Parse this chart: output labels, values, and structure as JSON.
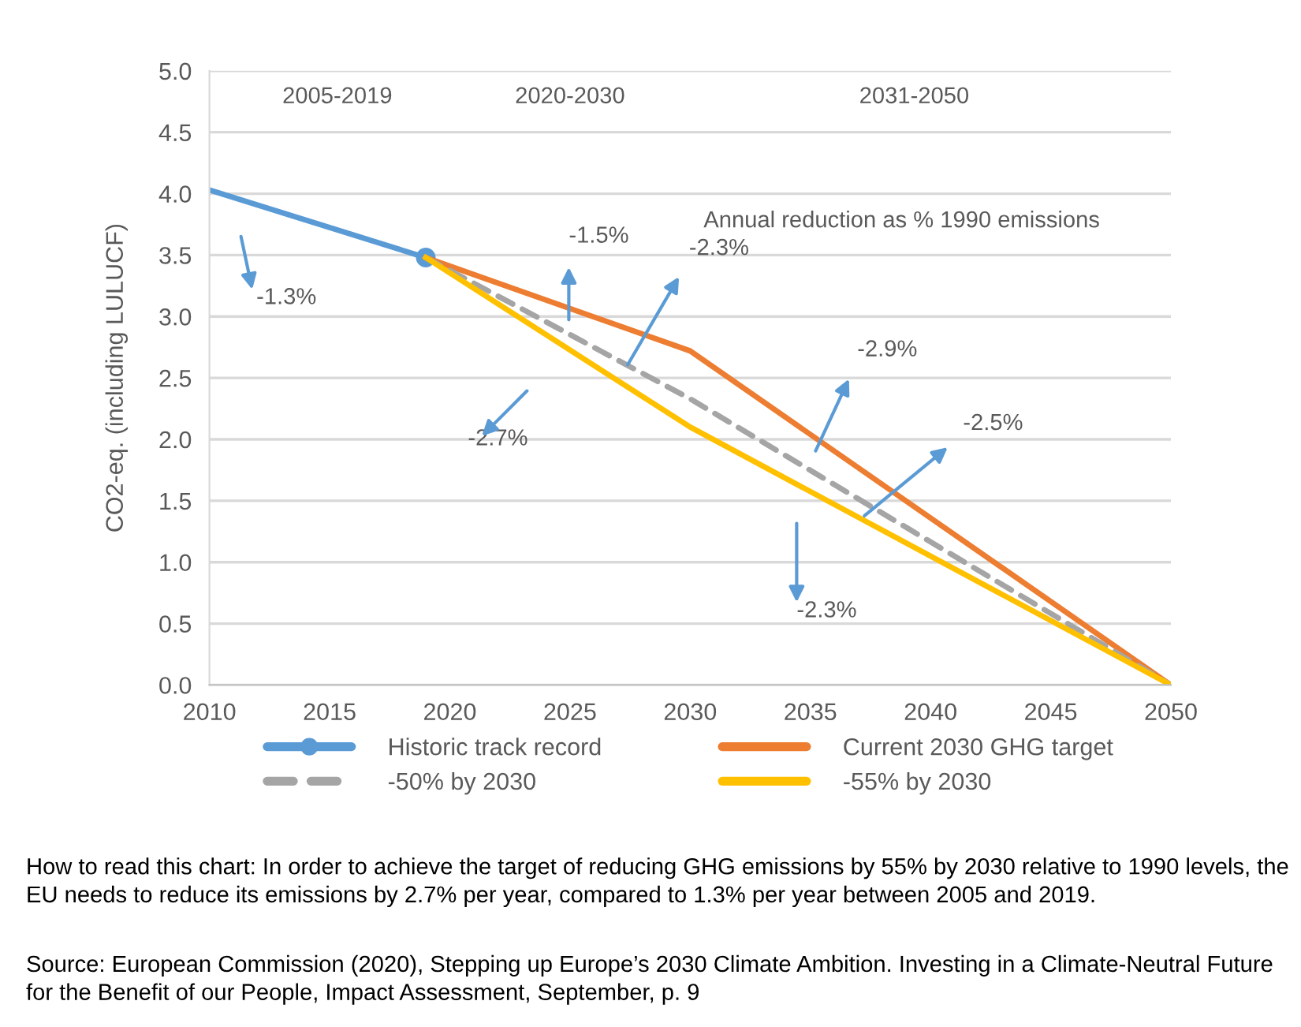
{
  "chart_data": {
    "type": "line",
    "ylabel": "CO2-eq. (including LULUCF)",
    "series": [
      {
        "name": "Historic track record",
        "color": "#5b9bd5",
        "x": [
          2010,
          2019
        ],
        "values": [
          4.03,
          3.48
        ],
        "marker": "circle",
        "line_style": "solid"
      },
      {
        "name": "Current 2030 GHG target",
        "color": "#ed7d31",
        "x": [
          2019,
          2030,
          2050
        ],
        "values": [
          3.48,
          2.72,
          0.0
        ],
        "marker": "none",
        "line_style": "solid"
      },
      {
        "name": "-50% by 2030",
        "color": "#a5a5a5",
        "x": [
          2019,
          2030,
          2050
        ],
        "values": [
          3.48,
          2.33,
          0.0
        ],
        "marker": "none",
        "line_style": "dashed"
      },
      {
        "name": "-55% by 2030",
        "color": "#ffc000",
        "x": [
          2019,
          2030,
          2050
        ],
        "values": [
          3.48,
          2.1,
          0.0
        ],
        "marker": "none",
        "line_style": "solid"
      }
    ],
    "xlim": [
      2010,
      2050
    ],
    "xticks": [
      2010,
      2015,
      2020,
      2025,
      2030,
      2035,
      2040,
      2045,
      2050
    ],
    "ylim": [
      0,
      5
    ],
    "yticks": [
      {
        "value": 0,
        "label": "0.0"
      },
      {
        "value": 0.5,
        "label": "0.5"
      },
      {
        "value": 1,
        "label": "1.0"
      },
      {
        "value": 1.5,
        "label": "1.5"
      },
      {
        "value": 2,
        "label": "2.0"
      },
      {
        "value": 2.5,
        "label": "2.5"
      },
      {
        "value": 3,
        "label": "3.0"
      },
      {
        "value": 3.5,
        "label": "3.5"
      },
      {
        "value": 4,
        "label": "4.0"
      },
      {
        "value": 4.5,
        "label": "4.5"
      },
      {
        "value": 5,
        "label": "5.0"
      }
    ],
    "grid": "y",
    "legend": "bottom",
    "annotations": [
      "2005-2019",
      "2020-2030",
      "2031-2050",
      "Annual reduction as % 1990 emissions",
      "-1.3%",
      "-1.5%",
      "-2.3%",
      "-2.7%",
      "-2.9%",
      "-2.5%",
      "-2.3%",
      "How to read this chart: In order to achieve the target of reducing GHG emissions by 55% by 2030 relative to 1990 levels, the EU needs to reduce its emissions by 2.7% per year, compared to 1.3% per year between 2005 and 2019.",
      "Source: European Commission (2020), Stepping up Europe’s 2030 Climate Ambition. Investing in a Climate-Neutral Future for the Benefit of our People, Impact Assessment, September, p. 9"
    ]
  }
}
